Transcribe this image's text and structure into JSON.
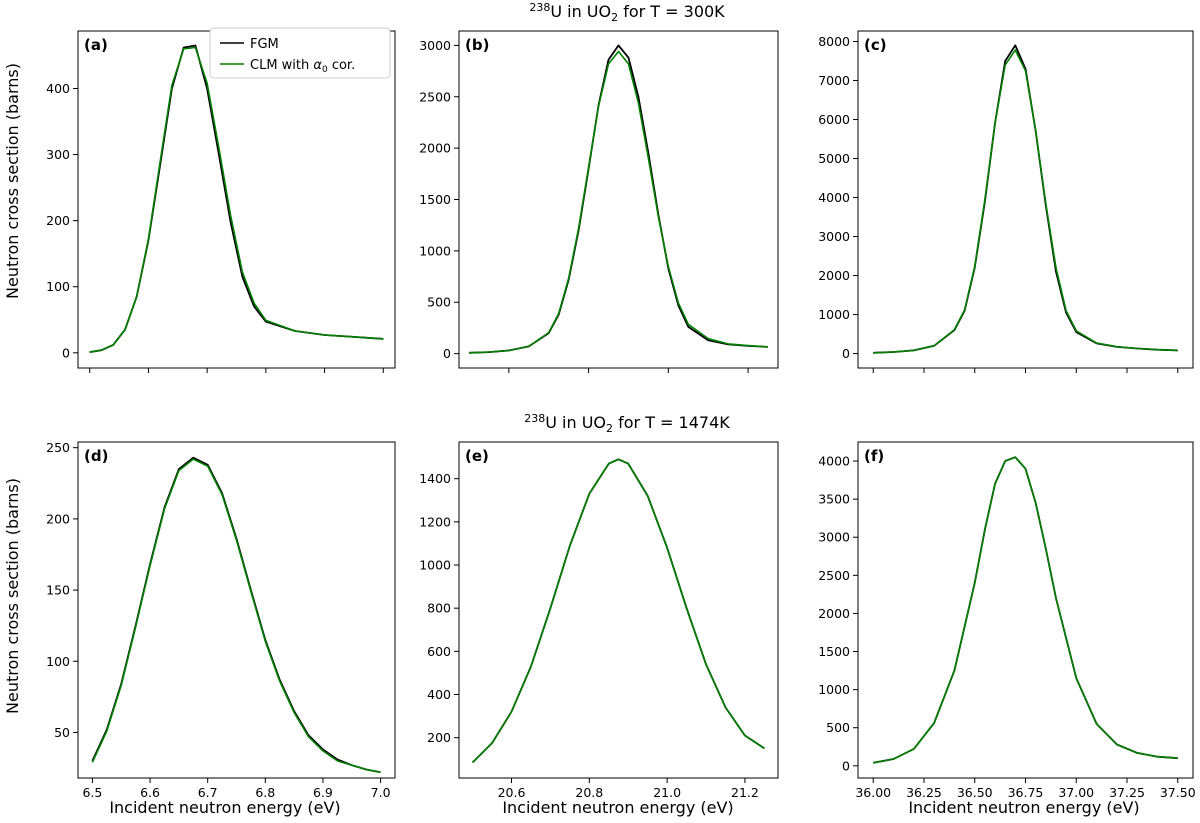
{
  "figure": {
    "row_titles": [
      {
        "pre": "238",
        "main": "U in UO",
        "sub": "2",
        "post": " for T = 300K"
      },
      {
        "pre": "238",
        "main": "U in UO",
        "sub": "2",
        "post": " for T = 1474K"
      }
    ],
    "ylabel": "Neutron cross section (barns)",
    "xlabel": "Incident neutron energy (eV)"
  },
  "legend": {
    "placement": "top-right of panel (a)",
    "entries": [
      {
        "name": "FGM",
        "color": "#000000"
      },
      {
        "name_main": "CLM with ",
        "name_symbol": "α",
        "name_sub": "0",
        "name_post": " cor.",
        "color": "#008000"
      }
    ]
  },
  "colors": {
    "fgm": "#000000",
    "clm": "#008000"
  },
  "chart_data": [
    {
      "type": "line",
      "panel": "(a)",
      "row": 0,
      "col": 0,
      "xlim": [
        6.48,
        7.02
      ],
      "ylim": [
        -23,
        487
      ],
      "xticks": [
        6.5,
        6.6,
        6.7,
        6.8,
        6.9,
        7.0
      ],
      "xticklabels_shown": false,
      "yticks": [
        0,
        100,
        200,
        300,
        400
      ],
      "yticklabels": [
        "0",
        "100",
        "200",
        "300",
        "400"
      ],
      "x": [
        6.5,
        6.52,
        6.54,
        6.56,
        6.58,
        6.6,
        6.62,
        6.64,
        6.66,
        6.68,
        6.7,
        6.72,
        6.74,
        6.76,
        6.78,
        6.8,
        6.85,
        6.9,
        6.95,
        7.0
      ],
      "series": [
        {
          "name": "FGM",
          "values": [
            1,
            4,
            12,
            35,
            85,
            170,
            285,
            400,
            462,
            465,
            400,
            300,
            198,
            115,
            70,
            47,
            33,
            27,
            24,
            21
          ]
        },
        {
          "name": "CLM with α0 cor.",
          "values": [
            1,
            4,
            12,
            35,
            85,
            172,
            290,
            405,
            460,
            462,
            408,
            310,
            208,
            122,
            75,
            49,
            33,
            27,
            24,
            21
          ]
        }
      ]
    },
    {
      "type": "line",
      "panel": "(b)",
      "row": 0,
      "col": 1,
      "xlim": [
        20.475,
        21.275
      ],
      "ylim": [
        -140,
        3140
      ],
      "xticks": [
        20.6,
        20.8,
        21.0,
        21.2
      ],
      "xticklabels_shown": false,
      "yticks": [
        0,
        500,
        1000,
        1500,
        2000,
        2500,
        3000
      ],
      "yticklabels": [
        "0",
        "500",
        "1000",
        "1500",
        "2000",
        "2500",
        "3000"
      ],
      "x": [
        20.5,
        20.55,
        20.6,
        20.65,
        20.7,
        20.725,
        20.75,
        20.775,
        20.8,
        20.825,
        20.85,
        20.875,
        20.9,
        20.925,
        20.95,
        20.975,
        21.0,
        21.025,
        21.05,
        21.1,
        21.15,
        21.2,
        21.25
      ],
      "series": [
        {
          "name": "FGM",
          "values": [
            8,
            15,
            30,
            70,
            200,
            380,
            720,
            1200,
            1800,
            2420,
            2860,
            3000,
            2880,
            2500,
            1950,
            1350,
            830,
            470,
            260,
            130,
            90,
            75,
            65
          ]
        },
        {
          "name": "CLM with α0 cor.",
          "values": [
            8,
            15,
            30,
            70,
            205,
            390,
            735,
            1220,
            1815,
            2410,
            2820,
            2940,
            2820,
            2440,
            1900,
            1330,
            850,
            495,
            285,
            145,
            95,
            78,
            65
          ]
        }
      ]
    },
    {
      "type": "line",
      "panel": "(c)",
      "row": 0,
      "col": 2,
      "xlim": [
        35.925,
        37.575
      ],
      "ylim": [
        -370,
        8270
      ],
      "xticks": [
        36.0,
        36.25,
        36.5,
        36.75,
        37.0,
        37.25,
        37.5
      ],
      "xticklabels_shown": false,
      "yticks": [
        0,
        1000,
        2000,
        3000,
        4000,
        5000,
        6000,
        7000,
        8000
      ],
      "yticklabels": [
        "0",
        "1000",
        "2000",
        "3000",
        "4000",
        "5000",
        "6000",
        "7000",
        "8000"
      ],
      "x": [
        36.0,
        36.1,
        36.2,
        36.3,
        36.4,
        36.45,
        36.5,
        36.55,
        36.6,
        36.65,
        36.7,
        36.75,
        36.8,
        36.85,
        36.9,
        36.95,
        37.0,
        37.1,
        37.2,
        37.3,
        37.4,
        37.5
      ],
      "series": [
        {
          "name": "FGM",
          "values": [
            20,
            40,
            80,
            200,
            600,
            1100,
            2200,
            3900,
            5900,
            7500,
            7900,
            7300,
            5700,
            3800,
            2100,
            1050,
            550,
            260,
            170,
            130,
            100,
            80
          ]
        },
        {
          "name": "CLM with α0 cor.",
          "values": [
            20,
            40,
            80,
            200,
            610,
            1120,
            2230,
            3950,
            5900,
            7400,
            7780,
            7250,
            5700,
            3850,
            2200,
            1100,
            580,
            270,
            175,
            130,
            100,
            80
          ]
        }
      ]
    },
    {
      "type": "line",
      "panel": "(d)",
      "row": 1,
      "col": 0,
      "xlim": [
        6.475,
        7.025
      ],
      "ylim": [
        18,
        254
      ],
      "xticks": [
        6.5,
        6.6,
        6.7,
        6.8,
        6.9,
        7.0
      ],
      "xticklabels": [
        "6.5",
        "6.6",
        "6.7",
        "6.8",
        "6.9",
        "7.0"
      ],
      "yticks": [
        50,
        100,
        150,
        200,
        250
      ],
      "yticklabels": [
        "50",
        "100",
        "150",
        "200",
        "250"
      ],
      "x": [
        6.5,
        6.525,
        6.55,
        6.575,
        6.6,
        6.625,
        6.65,
        6.675,
        6.7,
        6.725,
        6.75,
        6.775,
        6.8,
        6.825,
        6.85,
        6.875,
        6.9,
        6.925,
        6.95,
        6.975,
        7.0
      ],
      "series": [
        {
          "name": "FGM",
          "values": [
            30,
            52,
            84,
            125,
            168,
            208,
            235,
            243,
            238,
            218,
            186,
            150,
            115,
            87,
            65,
            48,
            38,
            31,
            27,
            24,
            22
          ]
        },
        {
          "name": "CLM with α0 cor.",
          "values": [
            29,
            51,
            83,
            124,
            167,
            207,
            234,
            242,
            237,
            217,
            185,
            149,
            114,
            86,
            64,
            47,
            37,
            30,
            27,
            24,
            22
          ]
        }
      ]
    },
    {
      "type": "line",
      "panel": "(e)",
      "row": 1,
      "col": 1,
      "xlim": [
        20.465,
        21.285
      ],
      "ylim": [
        13,
        1570
      ],
      "xticks": [
        20.6,
        20.8,
        21.0,
        21.2
      ],
      "xticklabels": [
        "20.6",
        "20.8",
        "21.0",
        "21.2"
      ],
      "yticks": [
        200,
        400,
        600,
        800,
        1000,
        1200,
        1400
      ],
      "yticklabels": [
        "200",
        "400",
        "600",
        "800",
        "1000",
        "1200",
        "1400"
      ],
      "x": [
        20.5,
        20.55,
        20.6,
        20.65,
        20.7,
        20.75,
        20.8,
        20.85,
        20.875,
        20.9,
        20.95,
        21.0,
        21.05,
        21.1,
        21.15,
        21.2,
        21.25
      ],
      "series": [
        {
          "name": "FGM",
          "values": [
            85,
            175,
            320,
            530,
            800,
            1090,
            1330,
            1470,
            1490,
            1470,
            1320,
            1080,
            800,
            540,
            340,
            210,
            150
          ]
        },
        {
          "name": "CLM with α0 cor.",
          "values": [
            85,
            175,
            320,
            530,
            800,
            1090,
            1330,
            1470,
            1490,
            1470,
            1320,
            1080,
            800,
            540,
            340,
            210,
            150
          ]
        }
      ]
    },
    {
      "type": "line",
      "panel": "(f)",
      "row": 1,
      "col": 2,
      "xlim": [
        35.925,
        37.575
      ],
      "ylim": [
        -160,
        4250
      ],
      "xticks": [
        36.0,
        36.25,
        36.5,
        36.75,
        37.0,
        37.25,
        37.5
      ],
      "xticklabels": [
        "36.00",
        "36.25",
        "36.50",
        "36.75",
        "37.00",
        "37.25",
        "37.50"
      ],
      "yticks": [
        0,
        500,
        1000,
        1500,
        2000,
        2500,
        3000,
        3500,
        4000
      ],
      "yticklabels": [
        "0",
        "500",
        "1000",
        "1500",
        "2000",
        "2500",
        "3000",
        "3500",
        "4000"
      ],
      "x": [
        36.0,
        36.1,
        36.2,
        36.3,
        36.4,
        36.5,
        36.55,
        36.6,
        36.65,
        36.7,
        36.75,
        36.8,
        36.85,
        36.9,
        37.0,
        37.1,
        37.2,
        37.3,
        37.4,
        37.5
      ],
      "series": [
        {
          "name": "FGM",
          "values": [
            40,
            90,
            220,
            560,
            1250,
            2400,
            3100,
            3700,
            4000,
            4050,
            3900,
            3450,
            2850,
            2200,
            1150,
            550,
            280,
            170,
            120,
            100
          ]
        },
        {
          "name": "CLM with α0 cor.",
          "values": [
            40,
            90,
            220,
            560,
            1250,
            2400,
            3100,
            3700,
            4000,
            4050,
            3900,
            3450,
            2850,
            2200,
            1150,
            550,
            280,
            170,
            120,
            100
          ]
        }
      ]
    }
  ]
}
